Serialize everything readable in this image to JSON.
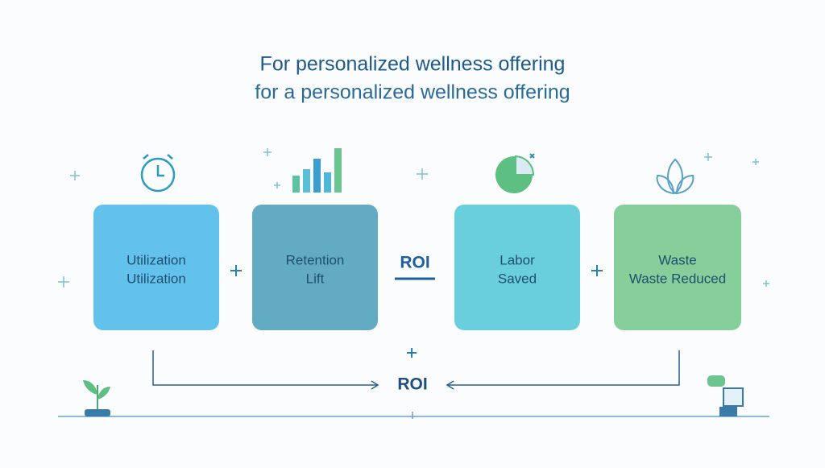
{
  "header": {
    "title": "For personalized wellness offering",
    "subtitle": "for a personalized wellness offering"
  },
  "boxes": [
    {
      "line1": "Utilization",
      "line2": "Utilization"
    },
    {
      "line1": "Retention",
      "line2": "Lift"
    },
    {
      "line1": "Labor",
      "line2": "Saved"
    },
    {
      "line1": "Waste",
      "line2": "Waste Reduced"
    }
  ],
  "center_label": "ROI",
  "bottom_label": "ROI"
}
